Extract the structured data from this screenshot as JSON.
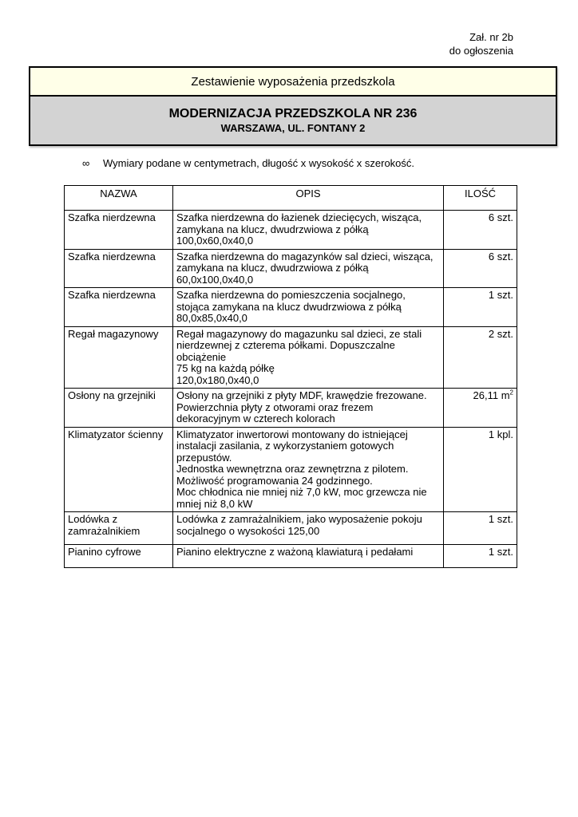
{
  "attachment": {
    "line1": "Zał. nr 2b",
    "line2": "do ogłoszenia"
  },
  "header": {
    "subtitle": "Zestawienie wyposażenia przedszkola",
    "title_line1": "MODERNIZACJA PRZEDSZKOLA NR 236",
    "title_line2": "WARSZAWA, UL. FONTANY 2"
  },
  "note": {
    "bullet": "∞",
    "text": "Wymiary podane w centymetrach, długość x wysokość x szerokość."
  },
  "table": {
    "headers": [
      "NAZWA",
      "OPIS",
      "ILOŚĆ"
    ],
    "rows": [
      {
        "name": "Szafka nierdzewna",
        "desc": "Szafka nierdzewna do łazienek dziecięcych, wisząca, zamykana na klucz, dwudrzwiowa z półką\n100,0x60,0x40,0",
        "qty": "6 szt.",
        "qty_sup": ""
      },
      {
        "name": "Szafka nierdzewna",
        "desc": "Szafka nierdzewna do magazynków sal dzieci, wisząca, zamykana na klucz, dwudrzwiowa z półką\n60,0x100,0x40,0",
        "qty": "6 szt.",
        "qty_sup": ""
      },
      {
        "name": "Szafka nierdzewna",
        "desc": "Szafka nierdzewna do pomieszczenia socjalnego, stojąca zamykana na klucz dwudrzwiowa z półką\n80,0x85,0x40,0",
        "qty": "1 szt.",
        "qty_sup": ""
      },
      {
        "name": "Regał magazynowy",
        "desc": "Regał magazynowy do magazunku sal dzieci, ze stali nierdzewnej z czterema półkami. Dopuszczalne obciążenie\n75 kg na każdą półkę\n120,0x180,0x40,0",
        "qty": "2 szt.",
        "qty_sup": ""
      },
      {
        "name": "Osłony na grzejniki",
        "desc": "Osłony na grzejniki z płyty MDF, krawędzie frezowane.\nPowierzchnia płyty z otworami oraz frezem dekoracyjnym w czterech kolorach",
        "qty": "26,11 m",
        "qty_sup": "2"
      },
      {
        "name": "Klimatyzator ścienny",
        "desc": "Klimatyzator inwertorowi montowany do istniejącej instalacji zasilania, z wykorzystaniem gotowych przepustów.\nJednostka wewnętrzna oraz zewnętrzna z pilotem.\nMożliwość programowania 24 godzinnego.\nMoc chłodnica nie mniej niż 7,0 kW, moc grzewcza nie mniej niż 8,0 kW",
        "qty": "1 kpl.",
        "qty_sup": ""
      },
      {
        "name": "Lodówka z zamrażalnikiem",
        "desc": "Lodówka z zamrażalnikiem, jako wyposażenie pokoju socjalnego o wysokości 125,00",
        "qty": "1 szt.",
        "qty_sup": ""
      },
      {
        "name": "Pianino cyfrowe",
        "desc": "Pianino elektryczne z ważoną klawiaturą i pedałami",
        "qty": "1 szt.",
        "qty_sup": ""
      }
    ]
  },
  "colors": {
    "subtitle_background": "#FFFFE8",
    "title_background": "#D3D3D3",
    "border": "#000000",
    "page_background": "#FFFFFF"
  }
}
